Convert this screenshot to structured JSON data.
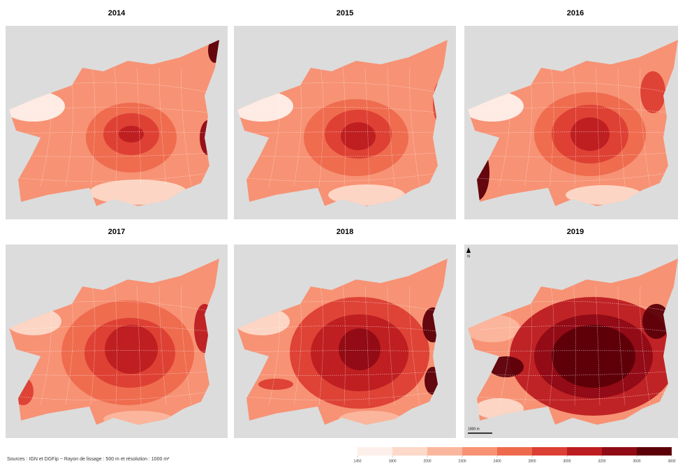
{
  "panels": [
    {
      "title": "2014"
    },
    {
      "title": "2015"
    },
    {
      "title": "2016"
    },
    {
      "title": "2017"
    },
    {
      "title": "2018"
    },
    {
      "title": "2019"
    }
  ],
  "source": "Sources : IGN et DGFip − Rayon de lissage : 500 m et résolution : 1000 m²",
  "north": "N",
  "scale_bar": "1000 m",
  "legend": {
    "breaks": [
      1450,
      1800,
      2000,
      2300,
      2400,
      2800,
      3000,
      3200,
      3500,
      3830
    ],
    "colors": [
      "#fdf0ea",
      "#fcd9c8",
      "#fbb79e",
      "#f79274",
      "#ee6a4d",
      "#dc3f33",
      "#bd1d21",
      "#900b15",
      "#5c0008"
    ]
  }
}
